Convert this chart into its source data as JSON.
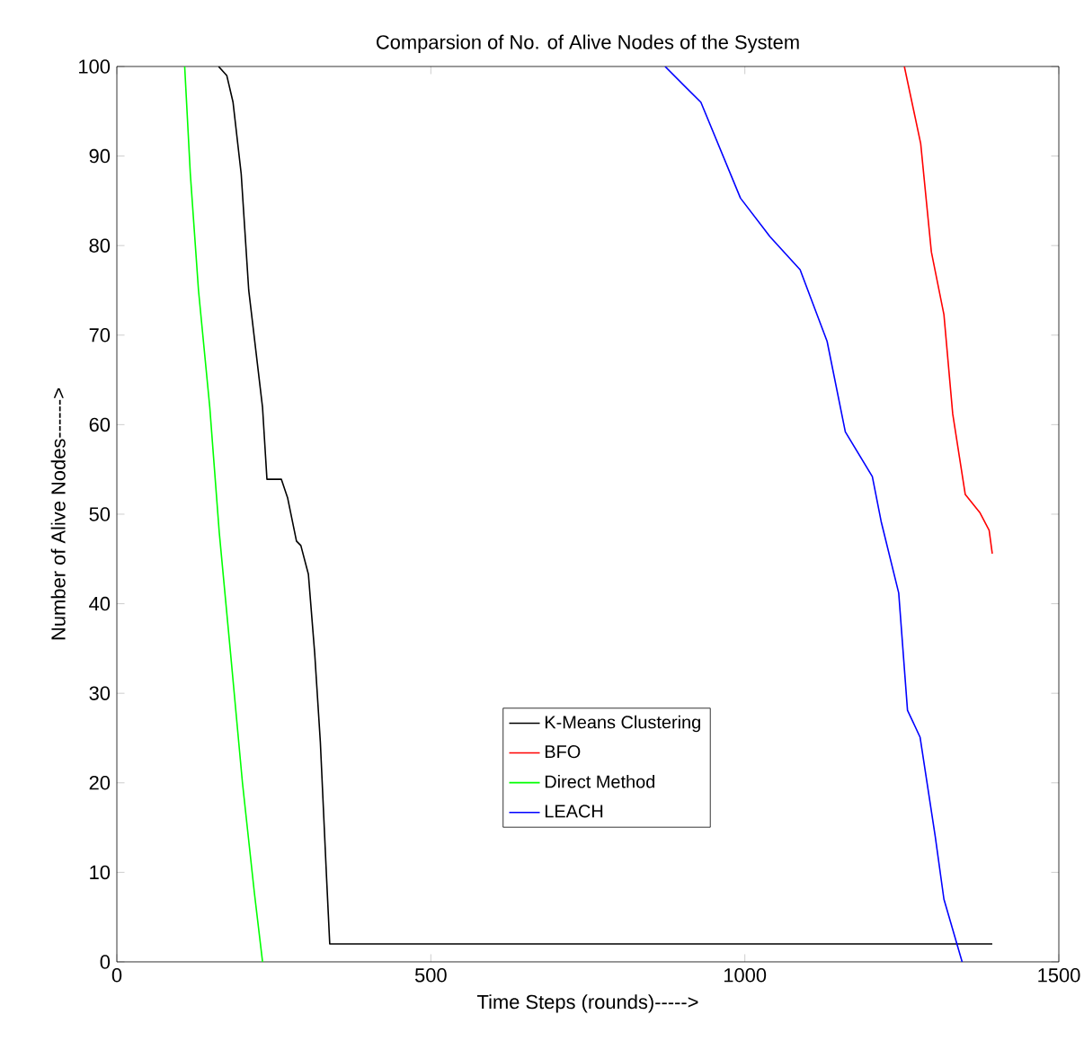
{
  "chart_data": {
    "type": "line",
    "title": "Comparsion of No. of Alive Nodes of the System",
    "xlabel": "Time Steps (rounds)----->",
    "ylabel": "Number of Alive Nodes------>",
    "xlim": [
      0,
      1500
    ],
    "ylim": [
      0,
      100
    ],
    "xticks": [
      0,
      500,
      1000,
      1500
    ],
    "yticks": [
      0,
      10,
      20,
      30,
      40,
      50,
      60,
      70,
      80,
      90,
      100
    ],
    "legend": "bottom",
    "grid": false,
    "series": [
      {
        "name": "K-Means Clustering",
        "color": "#000000",
        "x": [
          162,
          175,
          185,
          198,
          210,
          232,
          239,
          262,
          272,
          286,
          293,
          305,
          315,
          324,
          334,
          339,
          1394
        ],
        "values": [
          100,
          99,
          96,
          88,
          75,
          61.9,
          53.9,
          53.9,
          51.8,
          47,
          46.5,
          43.3,
          34.5,
          24.6,
          9.3,
          2,
          2
        ]
      },
      {
        "name": "BFO",
        "color": "#ff0000",
        "x": [
          1254,
          1280,
          1297,
          1317,
          1331,
          1351,
          1374,
          1389,
          1394
        ],
        "values": [
          100,
          91.4,
          79.3,
          72.3,
          61.2,
          52.2,
          50.2,
          48.2,
          45.6
        ]
      },
      {
        "name": "Direct Method",
        "color": "#00ff00",
        "x": [
          108,
          117,
          130,
          148,
          163,
          181,
          200,
          219,
          232
        ],
        "values": [
          100,
          88,
          75,
          61.9,
          48,
          34.5,
          20,
          7.7,
          0
        ]
      },
      {
        "name": "LEACH",
        "color": "#0000ff",
        "x": [
          873,
          930,
          993,
          1040,
          1088,
          1131,
          1160,
          1203,
          1217,
          1245,
          1259,
          1279,
          1303,
          1317,
          1346
        ],
        "values": [
          100,
          96,
          85.3,
          81,
          77.3,
          69.3,
          59.2,
          54.2,
          49.2,
          41.2,
          28.1,
          25.1,
          14.1,
          7,
          0
        ]
      }
    ]
  }
}
